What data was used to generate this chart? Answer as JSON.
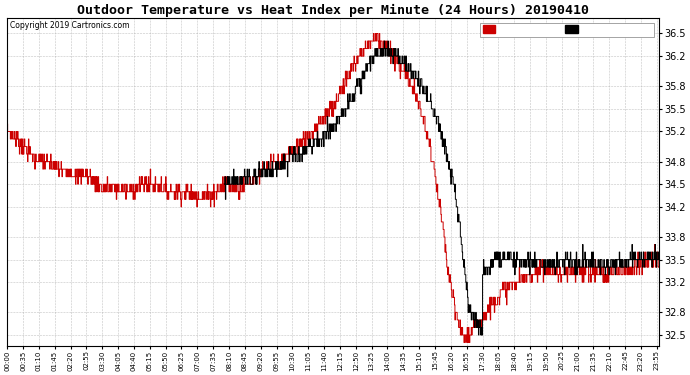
{
  "title": "Outdoor Temperature vs Heat Index per Minute (24 Hours) 20190410",
  "copyright": "Copyright 2019 Cartronics.com",
  "ylim": [
    32.35,
    36.7
  ],
  "yticks": [
    32.5,
    32.8,
    33.2,
    33.5,
    33.8,
    34.2,
    34.5,
    34.8,
    35.2,
    35.5,
    35.8,
    36.2,
    36.5
  ],
  "background_color": "white",
  "plot_bg_color": "white",
  "grid_color": "#aaaaaa",
  "line_color_temp": "black",
  "line_color_heat": "#cc0000",
  "num_minutes": 1440
}
